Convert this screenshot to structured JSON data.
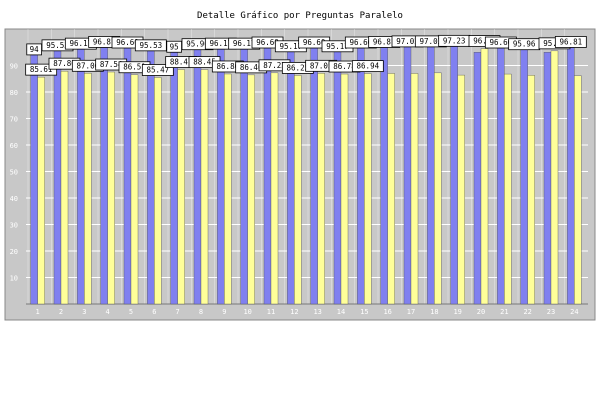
{
  "chart_data": {
    "type": "bar",
    "title": "Detalle Gráfico por Preguntas Paralelo",
    "categories": [
      "1",
      "2",
      "3",
      "4",
      "5",
      "6",
      "7",
      "8",
      "9",
      "10",
      "11",
      "12",
      "13",
      "14",
      "15",
      "16",
      "17",
      "18",
      "19",
      "20",
      "21",
      "22",
      "23",
      "24"
    ],
    "series": [
      {
        "color": "#8080f0",
        "values": [
          94.0,
          95.53,
          96.17,
          96.81,
          96.6,
          95.53,
          95.0,
          95.96,
          96.17,
          96.17,
          96.6,
          95.17,
          96.6,
          95.17,
          96.6,
          96.81,
          97.02,
          97.02,
          97.23,
          95.0,
          96.6,
          95.96,
          95.0,
          96.81
        ],
        "labels": [
          "94",
          "95.53",
          "96.17",
          "96.81",
          "96.60",
          "95.53",
          "95",
          "95.96",
          "96.17",
          "96.17",
          "96.60",
          "95.17",
          "96.60",
          "95.17",
          "96.60",
          "96.81",
          "97.02",
          "97.02",
          "97.23",
          "",
          "96.60",
          "95.96",
          "",
          "96.81"
        ]
      },
      {
        "color": "#ffff99",
        "values": [
          85.61,
          87.86,
          87.06,
          87.54,
          86.51,
          85.47,
          88.47,
          88.45,
          86.8,
          86.46,
          87.23,
          86.25,
          87.05,
          86.78,
          86.94,
          87.0,
          87.0,
          87.23,
          86.38,
          96.38,
          86.77,
          86.3,
          95.53,
          86.15
        ],
        "labels": [
          "85.61",
          "87.86",
          "87.06",
          "87.54",
          "86.51",
          "85.47",
          "88.47",
          "88.45",
          "86.80",
          "86.46",
          "87.23",
          "86.25",
          "87.05",
          "86.78",
          "86.94",
          "",
          "",
          "",
          "",
          "96.38",
          "",
          "",
          "95.53",
          ""
        ]
      }
    ],
    "ylim": [
      0,
      100
    ],
    "yticks": [
      10,
      20,
      30,
      40,
      50,
      60,
      70,
      80,
      90
    ],
    "grid": true,
    "colors": {
      "background": "#c8c8c8",
      "grid": "#ffffff",
      "label_box": "#ffffff"
    }
  }
}
